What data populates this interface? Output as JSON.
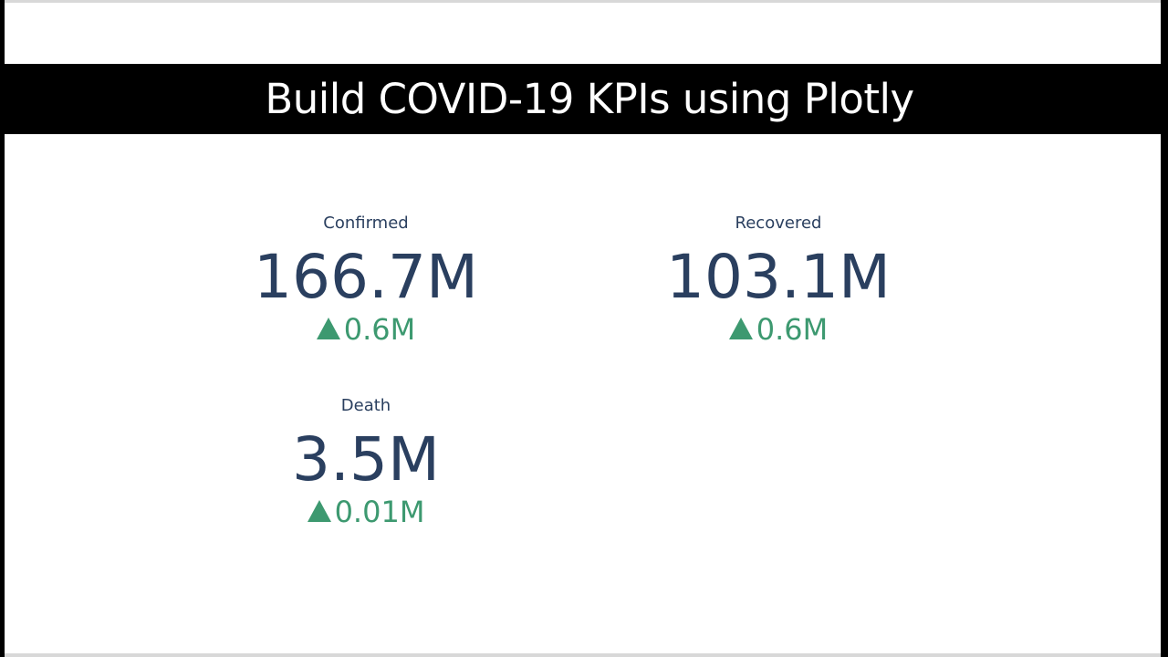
{
  "header": {
    "title": "Build COVID-19 KPIs using Plotly"
  },
  "kpis": {
    "confirmed": {
      "label": "Confirmed",
      "value": "166.7M",
      "delta": "0.6M",
      "delta_icon": "triangle-up-icon"
    },
    "recovered": {
      "label": "Recovered",
      "value": "103.1M",
      "delta": "0.6M",
      "delta_icon": "triangle-up-icon"
    },
    "death": {
      "label": "Death",
      "value": "3.5M",
      "delta": "0.01M",
      "delta_icon": "triangle-up-icon"
    }
  },
  "colors": {
    "value_text": "#2a3f5f",
    "delta_increase": "#3d9970",
    "title_bar_bg": "#000000",
    "title_text": "#ffffff"
  }
}
